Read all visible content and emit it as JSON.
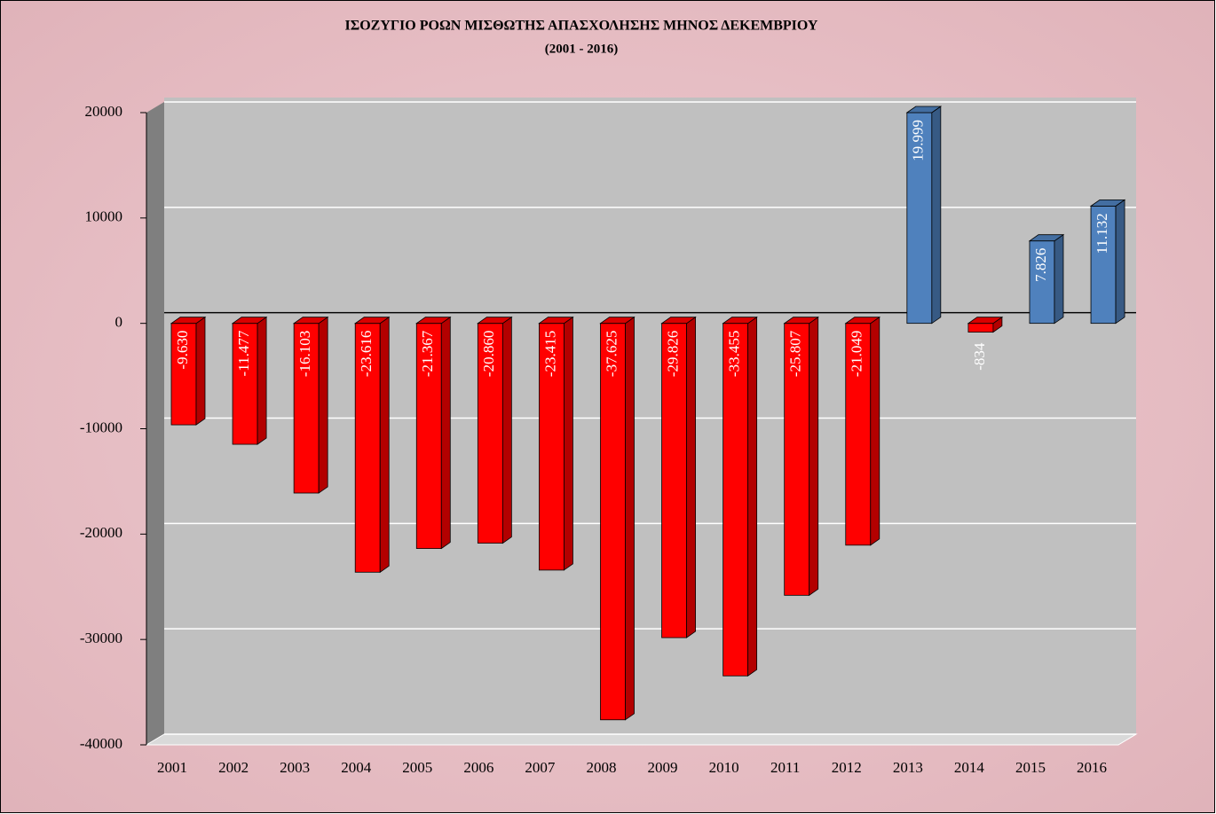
{
  "chart_data": {
    "type": "bar3d",
    "title": "ΙΣΟΖΥΓΙΟ ΡΟΩΝ ΜΙΣΘΩΤΗΣ ΑΠΑΣΧΟΛΗΣΗΣ ΜΗΝΟΣ  ΔΕΚΕΜΒΡΙΟΥ",
    "subtitle": "(2001 - 2016)",
    "categories": [
      "2001",
      "2002",
      "2003",
      "2004",
      "2005",
      "2006",
      "2007",
      "2008",
      "2009",
      "2010",
      "2011",
      "2012",
      "2013",
      "2014",
      "2015",
      "2016"
    ],
    "values": [
      -9630,
      -11477,
      -16103,
      -23616,
      -21367,
      -20860,
      -23415,
      -37625,
      -29826,
      -33455,
      -25807,
      -21049,
      19999,
      -834,
      7826,
      11132
    ],
    "value_labels": [
      "-9.630",
      "-11.477",
      "-16.103",
      "-23.616",
      "-21.367",
      "-20.860",
      "-23.415",
      "-37.625",
      "-29.826",
      "-33.455",
      "-25.807",
      "-21.049",
      "19.999",
      "-834",
      "7.826",
      "11.132"
    ],
    "colors": [
      "#ff0000",
      "#ff0000",
      "#ff0000",
      "#ff0000",
      "#ff0000",
      "#ff0000",
      "#ff0000",
      "#ff0000",
      "#ff0000",
      "#ff0000",
      "#ff0000",
      "#ff0000",
      "#4f81bd",
      "#ff0000",
      "#4f81bd",
      "#4f81bd"
    ],
    "ylim": [
      -40000,
      20000
    ],
    "yticks": [
      -40000,
      -30000,
      -20000,
      -10000,
      0,
      10000,
      20000
    ],
    "grid": true
  }
}
